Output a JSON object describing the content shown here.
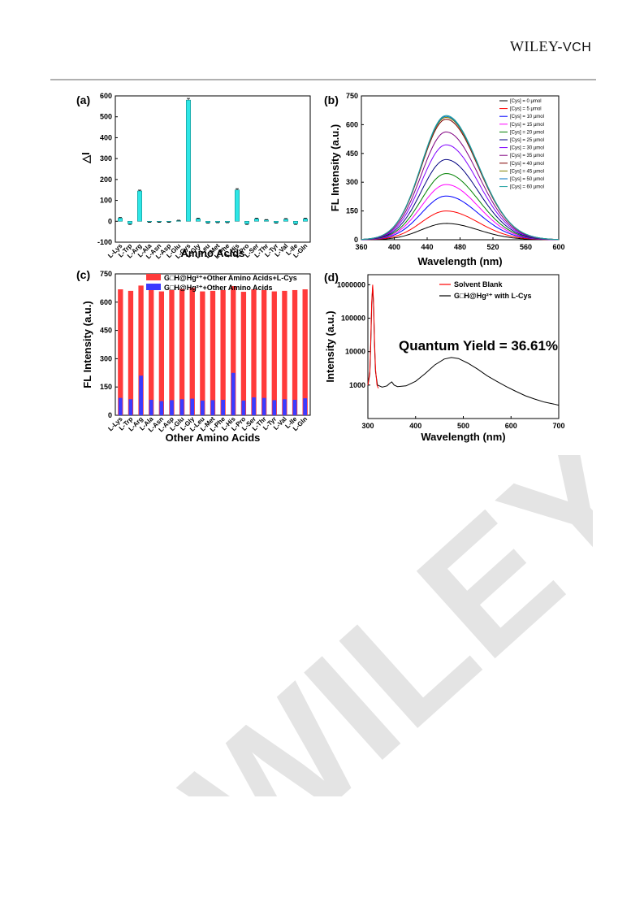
{
  "header": {
    "logo_main": "WILEY-",
    "logo_suffix": "VCH",
    "watermark": "WILEY"
  },
  "panels": {
    "a": {
      "label": "(a)"
    },
    "b": {
      "label": "(b)"
    },
    "c": {
      "label": "(c)"
    },
    "d": {
      "label": "(d)"
    }
  },
  "chart_data": [
    {
      "id": "a",
      "type": "bar",
      "xlabel": "Amino Acids",
      "ylabel": "△I",
      "ylim": [
        -100,
        600
      ],
      "yticks": [
        -100,
        0,
        100,
        200,
        300,
        400,
        500,
        600
      ],
      "categories": [
        "L-Lys",
        "L-Trp",
        "L-Arg",
        "L-Ala",
        "L-Asn",
        "L-Asp",
        "L-Glu",
        "L-Cys",
        "L-Gly",
        "L-Leu",
        "L-Met",
        "L-Phe",
        "L-His",
        "L-Pro",
        "L-Ser",
        "L-Thr",
        "L-Tyr",
        "L-Val",
        "L-Ile",
        "L-Gln"
      ],
      "values": [
        15,
        -12,
        145,
        -3,
        -3,
        -3,
        3,
        580,
        12,
        -7,
        -5,
        -5,
        150,
        -12,
        12,
        6,
        -7,
        10,
        -12,
        12
      ],
      "errors": [
        3,
        3,
        4,
        2,
        2,
        2,
        2,
        8,
        3,
        2,
        2,
        2,
        6,
        3,
        3,
        2,
        2,
        3,
        3,
        3
      ],
      "colors": {
        "bar": "#2ee6e6",
        "error": "#000000"
      }
    },
    {
      "id": "b",
      "type": "line",
      "xlabel": "Wavelength (nm)",
      "ylabel": "FL Intensity (a.u.)",
      "xlim": [
        360,
        600
      ],
      "ylim": [
        0,
        750
      ],
      "xticks": [
        360,
        400,
        440,
        480,
        520,
        560,
        600
      ],
      "yticks": [
        0,
        150,
        300,
        450,
        600,
        750
      ],
      "peak_wavelength": 463,
      "legend_position": "top-right",
      "series": [
        {
          "name": "[Cys] =  0   μmol",
          "peak": 85,
          "color": "#000000"
        },
        {
          "name": "[Cys] =  5   μmol",
          "peak": 150,
          "color": "#ff0000"
        },
        {
          "name": "[Cys] = 10  μmol",
          "peak": 228,
          "color": "#0000ff"
        },
        {
          "name": "[Cys] = 15  μmol",
          "peak": 288,
          "color": "#ff00ff"
        },
        {
          "name": "[Cys] = 20  μmol",
          "peak": 345,
          "color": "#008000"
        },
        {
          "name": "[Cys] = 25  μmol",
          "peak": 418,
          "color": "#000080"
        },
        {
          "name": "[Cys] = 30  μmol",
          "peak": 495,
          "color": "#8000ff"
        },
        {
          "name": "[Cys] = 35  μmol",
          "peak": 562,
          "color": "#800080"
        },
        {
          "name": "[Cys] = 40  μmol",
          "peak": 628,
          "color": "#800000"
        },
        {
          "name": "[Cys] = 45  μmol",
          "peak": 638,
          "color": "#808000"
        },
        {
          "name": "[Cys] = 50  μmol",
          "peak": 643,
          "color": "#0070c0"
        },
        {
          "name": "[Cys] = 60  μmol",
          "peak": 648,
          "color": "#20a0a0"
        }
      ]
    },
    {
      "id": "c",
      "type": "bar",
      "xlabel": "Other Amino Acids",
      "ylabel": "FL Intensity (a.u.)",
      "ylim": [
        0,
        750
      ],
      "yticks": [
        0,
        150,
        300,
        450,
        600,
        750
      ],
      "legend_position": "top",
      "categories": [
        "L-Lys",
        "L-Trp",
        "L-Arg",
        "L-Ala",
        "L-Asn",
        "L-Asp",
        "L-Glu",
        "L-Gly",
        "L-Leu",
        "L-Met",
        "L-Phe",
        "L-His",
        "L-Pro",
        "L-Ser",
        "L-Thr",
        "L-Tyr",
        "L-Val",
        "L-Ile",
        "L-Gln"
      ],
      "series": [
        {
          "name": "G□H@Hg²⁺+Other Amino Acids+L-Cys",
          "color": "#ff3b3b",
          "values": [
            668,
            660,
            688,
            672,
            657,
            665,
            670,
            676,
            657,
            660,
            664,
            685,
            655,
            668,
            664,
            657,
            660,
            664,
            668
          ]
        },
        {
          "name": "G□H@Hg²⁺+Other Amino Acids",
          "color": "#3b3bff",
          "values": [
            92,
            85,
            210,
            82,
            75,
            80,
            85,
            88,
            78,
            80,
            82,
            225,
            78,
            95,
            92,
            80,
            85,
            82,
            90
          ]
        }
      ]
    },
    {
      "id": "d",
      "type": "line",
      "xlabel": "Wavelength (nm)",
      "ylabel": "Intensity (a.u.)",
      "xlim": [
        300,
        700
      ],
      "ylim": [
        100,
        2000000
      ],
      "yscale": "log",
      "xticks": [
        300,
        400,
        500,
        600,
        700
      ],
      "yticks": [
        1000,
        10000,
        100000,
        1000000
      ],
      "annotation": "Quantum Yield = 36.61%",
      "legend_position": "top-right",
      "series": [
        {
          "name": "Solvent Blank",
          "color": "#ff0000",
          "points": [
            [
              300,
              1000
            ],
            [
              304,
              2500
            ],
            [
              306,
              20000
            ],
            [
              308,
              300000
            ],
            [
              310,
              1000000
            ],
            [
              312,
              300000
            ],
            [
              314,
              20000
            ],
            [
              316,
              3000
            ],
            [
              319,
              1000
            ],
            [
              322,
              800
            ]
          ]
        },
        {
          "name": "G□H@Hg²⁺ with L-Cys",
          "color": "#000000",
          "points": [
            [
              300,
              950
            ],
            [
              304,
              2200
            ],
            [
              306,
              15000
            ],
            [
              308,
              250000
            ],
            [
              310,
              880000
            ],
            [
              312,
              250000
            ],
            [
              314,
              15000
            ],
            [
              316,
              2500
            ],
            [
              320,
              1000
            ],
            [
              330,
              870
            ],
            [
              340,
              950
            ],
            [
              345,
              1100
            ],
            [
              350,
              1250
            ],
            [
              355,
              1000
            ],
            [
              362,
              900
            ],
            [
              380,
              950
            ],
            [
              400,
              1300
            ],
            [
              420,
              2200
            ],
            [
              440,
              4000
            ],
            [
              460,
              6000
            ],
            [
              475,
              6700
            ],
            [
              490,
              6200
            ],
            [
              510,
              4500
            ],
            [
              530,
              3000
            ],
            [
              550,
              1900
            ],
            [
              570,
              1300
            ],
            [
              590,
              900
            ],
            [
              610,
              650
            ],
            [
              630,
              480
            ],
            [
              650,
              380
            ],
            [
              670,
              310
            ],
            [
              690,
              270
            ],
            [
              700,
              250
            ]
          ]
        }
      ]
    }
  ]
}
